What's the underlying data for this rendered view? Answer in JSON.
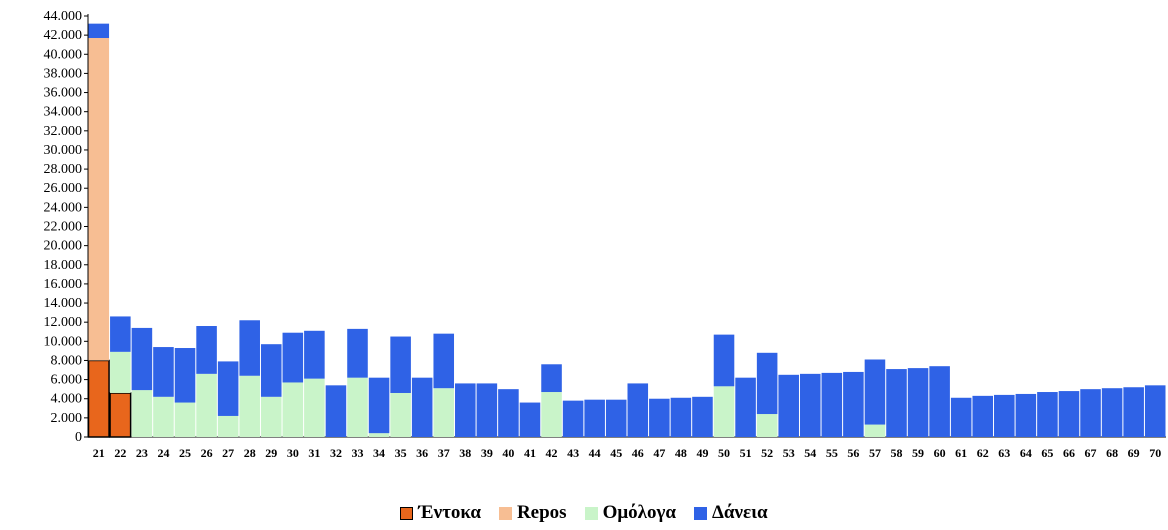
{
  "chart_data": {
    "type": "bar",
    "stacked": true,
    "title": "",
    "xlabel": "",
    "ylabel": "",
    "ylim": [
      0,
      44000
    ],
    "yticks": [
      0,
      2000,
      4000,
      6000,
      8000,
      10000,
      12000,
      14000,
      16000,
      18000,
      20000,
      22000,
      24000,
      26000,
      28000,
      30000,
      32000,
      34000,
      36000,
      38000,
      40000,
      42000,
      44000
    ],
    "ytick_labels": [
      "0",
      "2.000",
      "4.000",
      "6.000",
      "8.000",
      "10.000",
      "12.000",
      "14.000",
      "16.000",
      "18.000",
      "20.000",
      "22.000",
      "24.000",
      "26.000",
      "28.000",
      "30.000",
      "32.000",
      "34.000",
      "36.000",
      "38.000",
      "40.000",
      "42.000",
      "44.000"
    ],
    "grid": false,
    "legend_position": "bottom",
    "categories": [
      "21",
      "22",
      "23",
      "24",
      "25",
      "26",
      "27",
      "28",
      "29",
      "30",
      "31",
      "32",
      "33",
      "34",
      "35",
      "36",
      "37",
      "38",
      "39",
      "40",
      "41",
      "42",
      "43",
      "44",
      "45",
      "46",
      "47",
      "48",
      "49",
      "50",
      "51",
      "52",
      "53",
      "54",
      "55",
      "56",
      "57",
      "58",
      "59",
      "60",
      "61",
      "62",
      "63",
      "64",
      "65",
      "66",
      "67",
      "68",
      "69",
      "70"
    ],
    "series": [
      {
        "name": "Έντοκα",
        "color": "#e8661c",
        "stroke": "#000000",
        "values": [
          8000,
          4600,
          0,
          0,
          0,
          0,
          0,
          0,
          0,
          0,
          0,
          0,
          0,
          0,
          0,
          0,
          0,
          0,
          0,
          0,
          0,
          0,
          0,
          0,
          0,
          0,
          0,
          0,
          0,
          0,
          0,
          0,
          0,
          0,
          0,
          0,
          0,
          0,
          0,
          0,
          0,
          0,
          0,
          0,
          0,
          0,
          0,
          0,
          0,
          0
        ]
      },
      {
        "name": "Repos",
        "color": "#f7be93",
        "values": [
          33700,
          0,
          0,
          0,
          0,
          0,
          0,
          0,
          0,
          0,
          0,
          0,
          0,
          0,
          0,
          0,
          0,
          0,
          0,
          0,
          0,
          0,
          0,
          0,
          0,
          0,
          0,
          0,
          0,
          0,
          0,
          0,
          0,
          0,
          0,
          0,
          0,
          0,
          0,
          0,
          0,
          0,
          0,
          0,
          0,
          0,
          0,
          0,
          0,
          0
        ]
      },
      {
        "name": "Ομόλογα",
        "color": "#c9f4c9",
        "values": [
          0,
          4300,
          4900,
          4200,
          3600,
          6600,
          2200,
          6400,
          4200,
          5700,
          6100,
          0,
          6200,
          400,
          4600,
          0,
          5100,
          0,
          0,
          0,
          0,
          4700,
          0,
          0,
          0,
          0,
          0,
          0,
          0,
          5300,
          0,
          2400,
          0,
          0,
          0,
          0,
          1300,
          0,
          0,
          0,
          0,
          0,
          0,
          0,
          0,
          0,
          0,
          0,
          0,
          0
        ]
      },
      {
        "name": "Δάνεια",
        "color": "#2f62e6",
        "values": [
          1500,
          3700,
          6500,
          5200,
          5700,
          5000,
          5700,
          5800,
          5500,
          5200,
          5000,
          5400,
          5100,
          5800,
          5900,
          6200,
          5700,
          5600,
          5600,
          5000,
          3600,
          2900,
          3800,
          3900,
          3900,
          5600,
          4000,
          4100,
          4200,
          5400,
          6200,
          6400,
          6500,
          6600,
          6700,
          6800,
          6800,
          7100,
          7200,
          7400,
          4100,
          4300,
          4400,
          4500,
          4700,
          4800,
          5000,
          5100,
          5200,
          5400
        ]
      }
    ]
  }
}
